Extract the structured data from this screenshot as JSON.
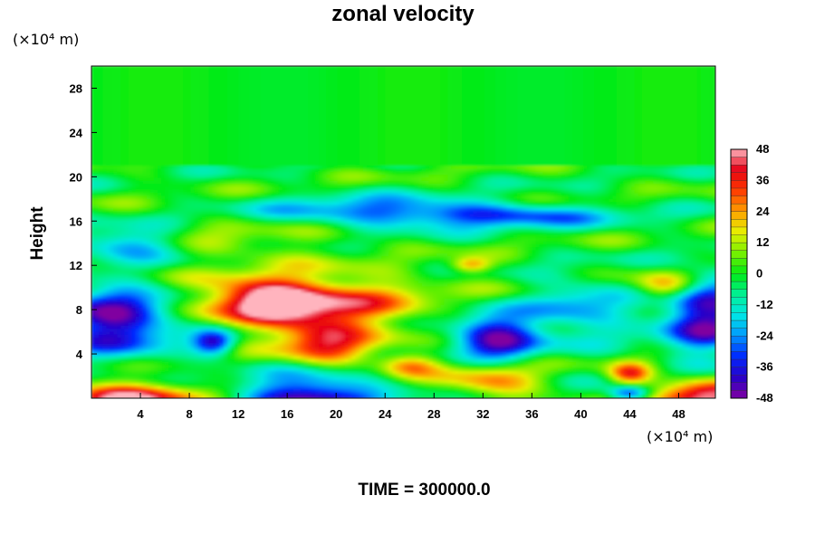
{
  "chart_data": {
    "type": "heatmap",
    "title": "zonal velocity",
    "ylabel": "Height",
    "xlabel": "",
    "y_unit": "(×10⁴ m)",
    "x_unit": "(×10⁴ m)",
    "xlim": [
      0,
      51
    ],
    "ylim": [
      0,
      30
    ],
    "x_ticks": [
      4,
      8,
      12,
      16,
      20,
      24,
      28,
      32,
      36,
      40,
      44,
      48
    ],
    "y_ticks": [
      4,
      8,
      12,
      16,
      20,
      24,
      28
    ],
    "colorbar": {
      "min": -48,
      "max": 48,
      "labels": [
        48,
        36,
        24,
        12,
        0,
        -12,
        -24,
        -36,
        -48
      ]
    },
    "features": [
      {
        "x": 18,
        "y": 8.5,
        "value": 40,
        "sx": 6,
        "sy": 1.8
      },
      {
        "x": 14,
        "y": 9,
        "value": 30,
        "sx": 3,
        "sy": 1.2
      },
      {
        "x": 19,
        "y": 5,
        "value": 35,
        "sx": 2.5,
        "sy": 1.5
      },
      {
        "x": 26,
        "y": 3,
        "value": 30,
        "sx": 1.8,
        "sy": 0.8
      },
      {
        "x": 33,
        "y": 1.5,
        "value": 26,
        "sx": 2.5,
        "sy": 1.2
      },
      {
        "x": 44,
        "y": 2.2,
        "value": 34,
        "sx": 1.2,
        "sy": 0.7
      },
      {
        "x": 47,
        "y": 10,
        "value": 30,
        "sx": 1.8,
        "sy": 1
      },
      {
        "x": 31,
        "y": 12,
        "value": 26,
        "sx": 1.2,
        "sy": 0.5
      },
      {
        "x": 3,
        "y": 0,
        "value": 48,
        "sx": 4,
        "sy": 1
      },
      {
        "x": 50,
        "y": 0,
        "value": 44,
        "sx": 3,
        "sy": 1.2
      },
      {
        "x": 18,
        "y": 0,
        "value": -48,
        "sx": 4,
        "sy": 1.5
      },
      {
        "x": 33,
        "y": 5.5,
        "value": -46,
        "sx": 2.5,
        "sy": 1.5
      },
      {
        "x": 2,
        "y": 7,
        "value": -46,
        "sx": 3.5,
        "sy": 2.2
      },
      {
        "x": 50,
        "y": 7.5,
        "value": -46,
        "sx": 2.5,
        "sy": 2.5
      },
      {
        "x": 10,
        "y": 5,
        "value": -38,
        "sx": 1.2,
        "sy": 0.8
      },
      {
        "x": 44,
        "y": 0.4,
        "value": -38,
        "sx": 1.2,
        "sy": 0.5
      },
      {
        "x": 33,
        "y": 16.5,
        "value": -30,
        "sx": 7,
        "sy": 0.8
      },
      {
        "x": 3,
        "y": 14,
        "value": -28,
        "sx": 3,
        "sy": 1
      },
      {
        "x": 22,
        "y": 17,
        "value": -20,
        "sx": 6,
        "sy": 1
      },
      {
        "x": 40,
        "y": 8,
        "value": -22,
        "sx": 3,
        "sy": 2
      },
      {
        "x": 12,
        "y": 14,
        "value": 10,
        "sx": 6,
        "sy": 1.2
      }
    ]
  }
}
